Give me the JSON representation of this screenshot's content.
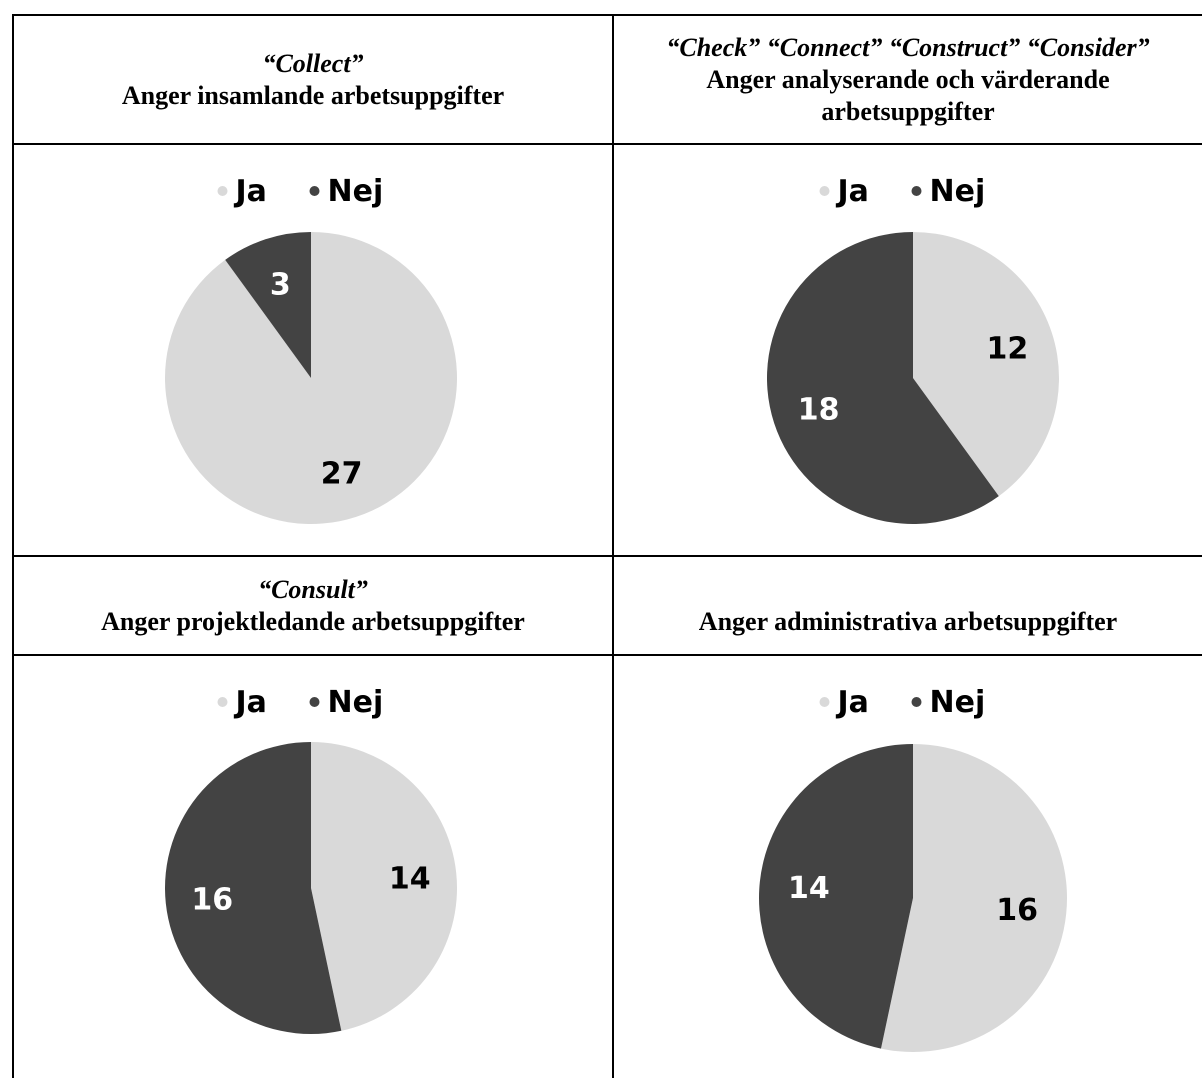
{
  "chart_data": [
    {
      "type": "pie",
      "header_italic": "“Collect”",
      "header_bold": "Anger insamlande arbetsuppgifter",
      "categories": [
        "Ja",
        "Nej"
      ],
      "values": [
        27,
        3
      ],
      "colors": [
        "#d9d9d9",
        "#434343"
      ],
      "legend_position": "top"
    },
    {
      "type": "pie",
      "header_italic": "“Check” “Connect” “Construct” “Consider”",
      "header_bold": "Anger analyserande och värderande arbetsuppgifter",
      "categories": [
        "Ja",
        "Nej"
      ],
      "values": [
        12,
        18
      ],
      "colors": [
        "#d9d9d9",
        "#434343"
      ],
      "legend_position": "top"
    },
    {
      "type": "pie",
      "header_italic": "“Consult”",
      "header_bold": "Anger projektledande arbetsuppgifter",
      "categories": [
        "Ja",
        "Nej"
      ],
      "values": [
        14,
        16
      ],
      "colors": [
        "#d9d9d9",
        "#434343"
      ],
      "legend_position": "top"
    },
    {
      "type": "pie",
      "header_italic": "",
      "header_bold": "Anger administrativa arbetsuppgifter",
      "categories": [
        "Ja",
        "Nej"
      ],
      "values": [
        16,
        14
      ],
      "colors": [
        "#d9d9d9",
        "#434343"
      ],
      "legend_position": "top"
    }
  ]
}
